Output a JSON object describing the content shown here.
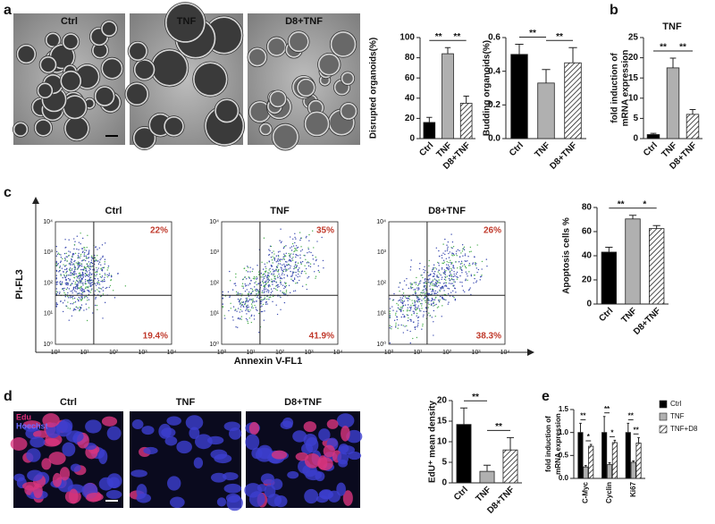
{
  "panel_labels": [
    "a",
    "b",
    "c",
    "d",
    "e"
  ],
  "organoid_images": [
    "Ctrl",
    "TNF",
    "D8+TNF"
  ],
  "flow": {
    "titles": [
      "Ctrl",
      "TNF",
      "D8+TNF"
    ],
    "upper_right": [
      "22%",
      "35%",
      "26%"
    ],
    "lower_right": [
      "19.4%",
      "41.9%",
      "38.3%"
    ],
    "x_label": "Annexin V-FL1",
    "y_label": "PI-FL3",
    "ticks": [
      "10⁰",
      "10¹",
      "10²",
      "10³",
      "10⁴"
    ]
  },
  "edu_images": {
    "titles": [
      "Ctrl",
      "TNF",
      "D8+TNF"
    ],
    "stains": [
      "Edu",
      "Hoechst"
    ]
  },
  "chart_data": [
    {
      "type": "bar",
      "y_label": "Disrupted organoids(%)",
      "categories": [
        "Ctrl",
        "TNF",
        "D8+TNF"
      ],
      "values": [
        16,
        84,
        35
      ],
      "errors": [
        5,
        6,
        7
      ],
      "colors": [
        "#000000",
        "#b0b0b0",
        "#ffffff"
      ],
      "hatched": [
        false,
        false,
        true
      ],
      "ylim": [
        0,
        100
      ],
      "yticks": [
        0,
        20,
        40,
        60,
        80,
        100
      ],
      "annotations": [
        "**",
        "**"
      ]
    },
    {
      "type": "bar",
      "y_label": "Budding organoids(%)",
      "categories": [
        "Ctrl",
        "TNF",
        "D8+TNF"
      ],
      "values": [
        0.5,
        0.33,
        0.45
      ],
      "errors": [
        0.06,
        0.08,
        0.09
      ],
      "colors": [
        "#000000",
        "#b0b0b0",
        "#ffffff"
      ],
      "hatched": [
        false,
        false,
        true
      ],
      "ylim": [
        0,
        0.6
      ],
      "yticks": [
        {
          "value": 0,
          "label": "0.0"
        },
        0.2,
        0.4,
        0.6
      ],
      "annotations": [
        "**",
        "**"
      ]
    },
    {
      "type": "bar",
      "title": "TNF",
      "y_label": [
        "fold induction of",
        "mRNA expression"
      ],
      "categories": [
        "Ctrl",
        "TNF",
        "D8+TNF"
      ],
      "values": [
        1,
        17.5,
        6
      ],
      "errors": [
        0.3,
        2.4,
        1.2
      ],
      "colors": [
        "#000000",
        "#b0b0b0",
        "#ffffff"
      ],
      "hatched": [
        false,
        false,
        true
      ],
      "ylim": [
        0,
        25
      ],
      "yticks": [
        0,
        5,
        10,
        15,
        20,
        25
      ],
      "annotations": [
        "**",
        "**"
      ]
    },
    {
      "type": "bar",
      "y_label": "Apoptosis cells %",
      "categories": [
        "Ctrl",
        "TNF",
        "D8+TNF"
      ],
      "values": [
        43,
        70.5,
        62.5
      ],
      "errors": [
        4,
        3,
        2.5
      ],
      "colors": [
        "#000000",
        "#b0b0b0",
        "#ffffff"
      ],
      "hatched": [
        false,
        false,
        true
      ],
      "ylim": [
        0,
        80
      ],
      "yticks": [
        0,
        20,
        40,
        60,
        80
      ],
      "annotations": [
        "**",
        "*"
      ]
    },
    {
      "type": "bar",
      "y_label": "EdU⁺ mean density",
      "categories": [
        "Ctrl",
        "TNF",
        "D8+TNF"
      ],
      "values": [
        14.2,
        2.8,
        8
      ],
      "errors": [
        4,
        1.5,
        3
      ],
      "colors": [
        "#000000",
        "#b0b0b0",
        "#ffffff"
      ],
      "hatched": [
        false,
        false,
        true
      ],
      "ylim": [
        0,
        20
      ],
      "yticks": [
        0,
        5,
        10,
        15,
        20
      ],
      "annotations": [
        "**",
        "**"
      ]
    },
    {
      "type": "grouped_bar",
      "y_label": [
        "fold induction of",
        "mRNA expression"
      ],
      "categories": [
        "C-Myc",
        "Cyclin",
        "Ki67"
      ],
      "series": [
        {
          "name": "Ctrl",
          "color": "#000000",
          "hatched": false,
          "values": [
            1,
            1,
            1
          ],
          "errors": [
            0.2,
            0.35,
            0.2
          ]
        },
        {
          "name": "TNF",
          "color": "#b0b0b0",
          "hatched": false,
          "values": [
            0.25,
            0.3,
            0.35
          ],
          "errors": [
            0.03,
            0.04,
            0.03
          ]
        },
        {
          "name": "TNF+D8",
          "color": "#ffffff",
          "hatched": true,
          "values": [
            0.7,
            0.78,
            0.77
          ],
          "errors": [
            0.04,
            0.05,
            0.12
          ]
        }
      ],
      "ylim": [
        0,
        1.5
      ],
      "yticks": [
        {
          "value": 0,
          "label": "0.0"
        },
        0.5,
        {
          "value": 1,
          "label": "1.0"
        },
        1.5
      ],
      "annotations": [
        "**",
        "*",
        "**",
        "*",
        "**",
        "**"
      ],
      "legend": "right"
    }
  ]
}
